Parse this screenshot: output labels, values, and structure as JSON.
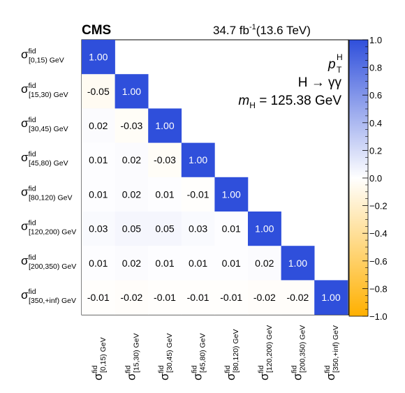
{
  "header": {
    "experiment": "CMS",
    "lumi_value": "34.7 fb",
    "lumi_exp": "-1",
    "energy": "(13.6 TeV)"
  },
  "annotations": {
    "observable": "p",
    "observable_sup": "H",
    "observable_sub": "T",
    "channel": "H → γγ",
    "mass_symbol": "m",
    "mass_sub": "H",
    "mass_value": " = 125.38 GeV"
  },
  "chart_data": {
    "type": "heatmap",
    "symbol": "σ",
    "superscript": "fid",
    "bins": [
      "[0,15) GeV",
      "[15,30) GeV",
      "[30,45) GeV",
      "[45,80) GeV",
      "[80,120) GeV",
      "[120,200) GeV",
      "[200,350) GeV",
      "[350,+inf) GeV"
    ],
    "matrix": [
      [
        1.0
      ],
      [
        -0.05,
        1.0
      ],
      [
        0.02,
        -0.03,
        1.0
      ],
      [
        0.01,
        0.02,
        -0.03,
        1.0
      ],
      [
        0.01,
        0.02,
        0.01,
        -0.01,
        1.0
      ],
      [
        0.03,
        0.05,
        0.05,
        0.03,
        0.01,
        1.0
      ],
      [
        0.01,
        0.02,
        0.01,
        0.01,
        0.01,
        0.02,
        1.0
      ],
      [
        -0.01,
        -0.02,
        -0.01,
        -0.01,
        -0.01,
        -0.02,
        -0.02,
        1.0
      ]
    ],
    "cell_labels": [
      [
        "1.00"
      ],
      [
        "-0.05",
        "1.00"
      ],
      [
        "0.02",
        "-0.03",
        "1.00"
      ],
      [
        "0.01",
        "0.02",
        "-0.03",
        "1.00"
      ],
      [
        "0.01",
        "0.02",
        "0.01",
        "-0.01",
        "1.00"
      ],
      [
        "0.03",
        "0.05",
        "0.05",
        "0.03",
        "0.01",
        "1.00"
      ],
      [
        "0.01",
        "0.02",
        "0.01",
        "0.01",
        "0.01",
        "0.02",
        "1.00"
      ],
      [
        "-0.01",
        "-0.02",
        "-0.01",
        "-0.01",
        "-0.01",
        "-0.02",
        "-0.02",
        "1.00"
      ]
    ],
    "zlim": [
      -1.0,
      1.0
    ],
    "colorbar_ticks": [
      "1.0",
      "0.8",
      "0.6",
      "0.4",
      "0.2",
      "0.0",
      "−0.2",
      "−0.4",
      "−0.6",
      "−0.8",
      "−1.0"
    ],
    "colors": {
      "positive": "#2f4fdb",
      "zero": "#ffffff",
      "negative": "#ffb000"
    }
  }
}
